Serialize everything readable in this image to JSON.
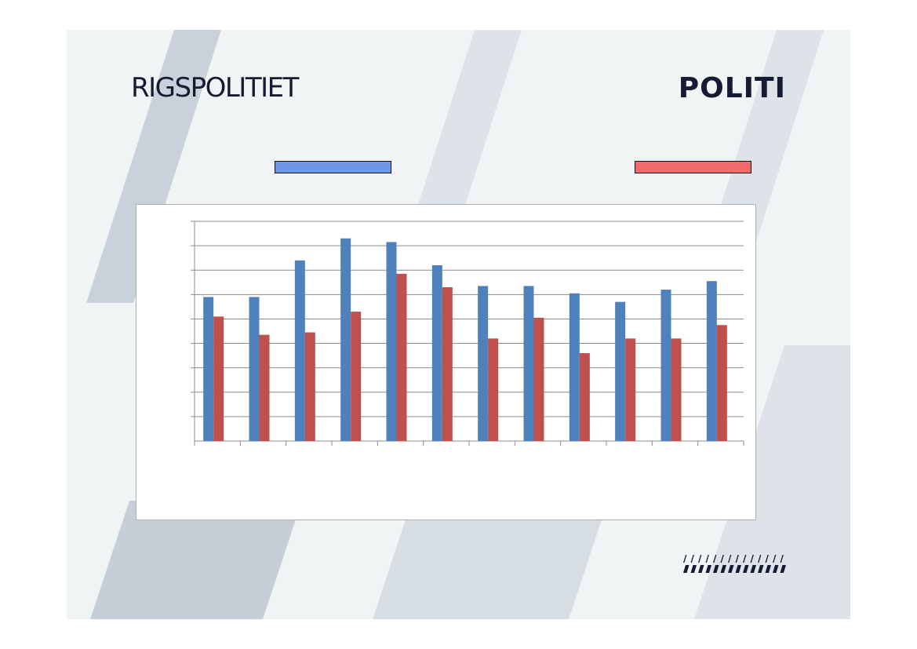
{
  "header": {
    "left_title": "RIGSPOLITIET",
    "right_logo": "POLITI"
  },
  "legend": {
    "series_1_color": "#6d97e8",
    "series_2_color": "#f26a6a"
  },
  "chart_data": {
    "type": "bar",
    "categories": [
      "",
      "",
      "",
      "",
      "",
      "",
      "",
      "",
      "",
      "",
      "",
      ""
    ],
    "series": [
      {
        "color": "#4f81bd",
        "values": [
          5.9,
          5.9,
          7.4,
          8.3,
          8.15,
          7.2,
          6.35,
          6.35,
          6.05,
          5.7,
          6.2,
          6.55
        ]
      },
      {
        "color": "#c0504d",
        "values": [
          5.1,
          4.35,
          4.45,
          5.3,
          6.85,
          6.3,
          4.2,
          5.05,
          3.6,
          4.2,
          4.2,
          4.75
        ]
      }
    ],
    "ylim": [
      0,
      9
    ],
    "grid": true,
    "xlabel": "",
    "ylabel": ""
  }
}
